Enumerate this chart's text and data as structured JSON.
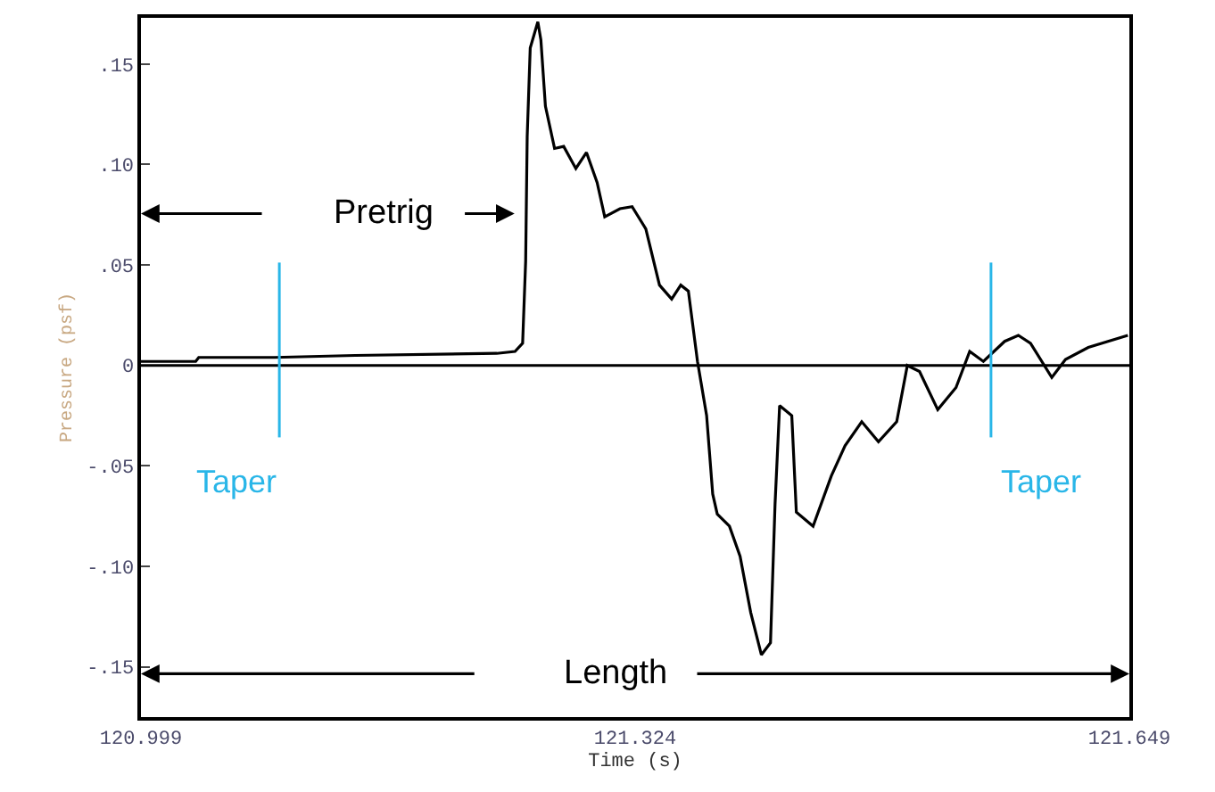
{
  "chart_data": {
    "type": "line",
    "xlabel": "Time (s)",
    "ylabel": "Pressure (psf)",
    "x": [
      120.999,
      121.035,
      121.037,
      121.087,
      121.14,
      121.233,
      121.245,
      121.25,
      121.252,
      121.253,
      121.255,
      121.26,
      121.262,
      121.265,
      121.271,
      121.277,
      121.285,
      121.292,
      121.299,
      121.304,
      121.314,
      121.322,
      121.331,
      121.34,
      121.348,
      121.354,
      121.359,
      121.365,
      121.371,
      121.375,
      121.378,
      121.386,
      121.393,
      121.4,
      121.407,
      121.413,
      121.416,
      121.419,
      121.427,
      121.43,
      121.441,
      121.453,
      121.462,
      121.473,
      121.484,
      121.496,
      121.503,
      121.511,
      121.523,
      121.535,
      121.544,
      121.553,
      121.567,
      121.576,
      121.584,
      121.598,
      121.607,
      121.622,
      121.648
    ],
    "series": [
      {
        "color": "#000000",
        "values": [
          0.002,
          0.002,
          0.004,
          0.004,
          0.005,
          0.006,
          0.007,
          0.011,
          0.052,
          0.114,
          0.158,
          0.171,
          0.162,
          0.129,
          0.108,
          0.109,
          0.098,
          0.106,
          0.091,
          0.074,
          0.078,
          0.079,
          0.068,
          0.04,
          0.033,
          0.04,
          0.037,
          0.002,
          -0.025,
          -0.064,
          -0.074,
          -0.08,
          -0.095,
          -0.123,
          -0.144,
          -0.138,
          -0.069,
          -0.02,
          -0.025,
          -0.073,
          -0.08,
          -0.055,
          -0.04,
          -0.028,
          -0.038,
          -0.028,
          0,
          -0.003,
          -0.022,
          -0.011,
          0.007,
          0.002,
          0.012,
          0.015,
          0.011,
          -0.006,
          0.003,
          0.009,
          0.015
        ]
      }
    ],
    "xlim": [
      120.999,
      121.649
    ],
    "xticks": [
      120.999,
      121.324,
      121.649
    ],
    "ylim": [
      -0.175,
      0.173
    ],
    "yticks": [
      {
        "value": 0.15,
        "label": ".15"
      },
      {
        "value": 0.1,
        "label": ".10"
      },
      {
        "value": 0.05,
        "label": ".05"
      },
      0,
      {
        "value": -0.05,
        "label": "-.05"
      },
      {
        "value": -0.1,
        "label": "-.10"
      },
      {
        "value": -0.15,
        "label": "-.15"
      }
    ],
    "ref_lines": [
      {
        "axis": "y",
        "value": 0,
        "color": "#000000"
      },
      {
        "axis": "x",
        "value": 121.09,
        "label": "Taper",
        "color": "#29b6e8"
      },
      {
        "axis": "x",
        "value": 121.558,
        "label": "Taper",
        "color": "#29b6e8"
      }
    ],
    "annotations": [
      "Pretrig",
      "Length"
    ],
    "grid": false,
    "marker": "none",
    "line_style": "solid"
  }
}
